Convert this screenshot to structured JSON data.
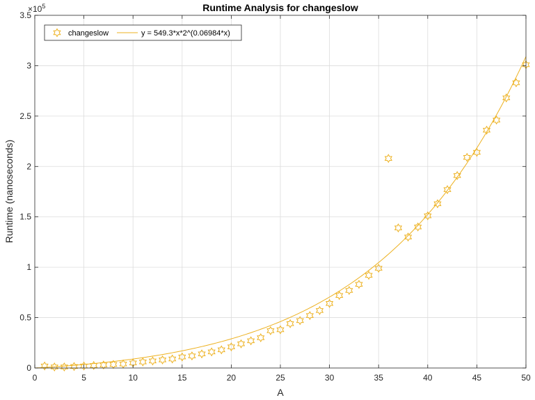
{
  "chart_data": {
    "type": "scatter",
    "title": "Runtime Analysis for changeslow",
    "xlabel": "A",
    "ylabel": "Runtime (nanoseconds)",
    "xlim": [
      0,
      50
    ],
    "ylim": [
      0,
      350000
    ],
    "x_ticks": [
      0,
      5,
      10,
      15,
      20,
      25,
      30,
      35,
      40,
      45,
      50
    ],
    "y_ticks": [
      0,
      50000,
      100000,
      150000,
      200000,
      250000,
      300000,
      350000
    ],
    "y_tick_labels": [
      "0",
      "0.5",
      "1",
      "1.5",
      "2",
      "2.5",
      "3",
      "3.5"
    ],
    "y_exponent": {
      "base": "×10",
      "power": "5"
    },
    "grid": true,
    "legend_placement": "top-left",
    "colors": {
      "marker": "#EDB120",
      "line": "#EDB120",
      "grid": "#dcdcdc",
      "axis": "#262626"
    },
    "series": [
      {
        "name": "changeslow",
        "kind": "markers",
        "marker": "hexagram",
        "x": [
          1,
          2,
          3,
          4,
          5,
          6,
          7,
          8,
          9,
          10,
          11,
          12,
          13,
          14,
          15,
          16,
          17,
          18,
          19,
          20,
          21,
          22,
          23,
          24,
          25,
          26,
          27,
          28,
          29,
          30,
          31,
          32,
          33,
          34,
          35,
          36,
          37,
          38,
          39,
          40,
          41,
          42,
          43,
          44,
          45,
          46,
          47,
          48,
          49,
          50
        ],
        "y": [
          2000,
          1000,
          1000,
          1500,
          2000,
          2500,
          3000,
          3500,
          4000,
          5000,
          6000,
          7000,
          8000,
          9000,
          11000,
          12000,
          14000,
          16000,
          18000,
          21000,
          24000,
          27000,
          30000,
          37000,
          38000,
          44000,
          47000,
          52000,
          57000,
          64000,
          72000,
          77000,
          83000,
          92000,
          99000,
          208000,
          139000,
          130000,
          140000,
          151000,
          163000,
          177000,
          191000,
          209000,
          214000,
          236000,
          246000,
          268000,
          283000,
          301000
        ]
      },
      {
        "name": "y = 549.3*x*2^(0.06984*x)",
        "kind": "line",
        "formula": {
          "a": 549.3,
          "b": 0.06984
        }
      }
    ]
  }
}
